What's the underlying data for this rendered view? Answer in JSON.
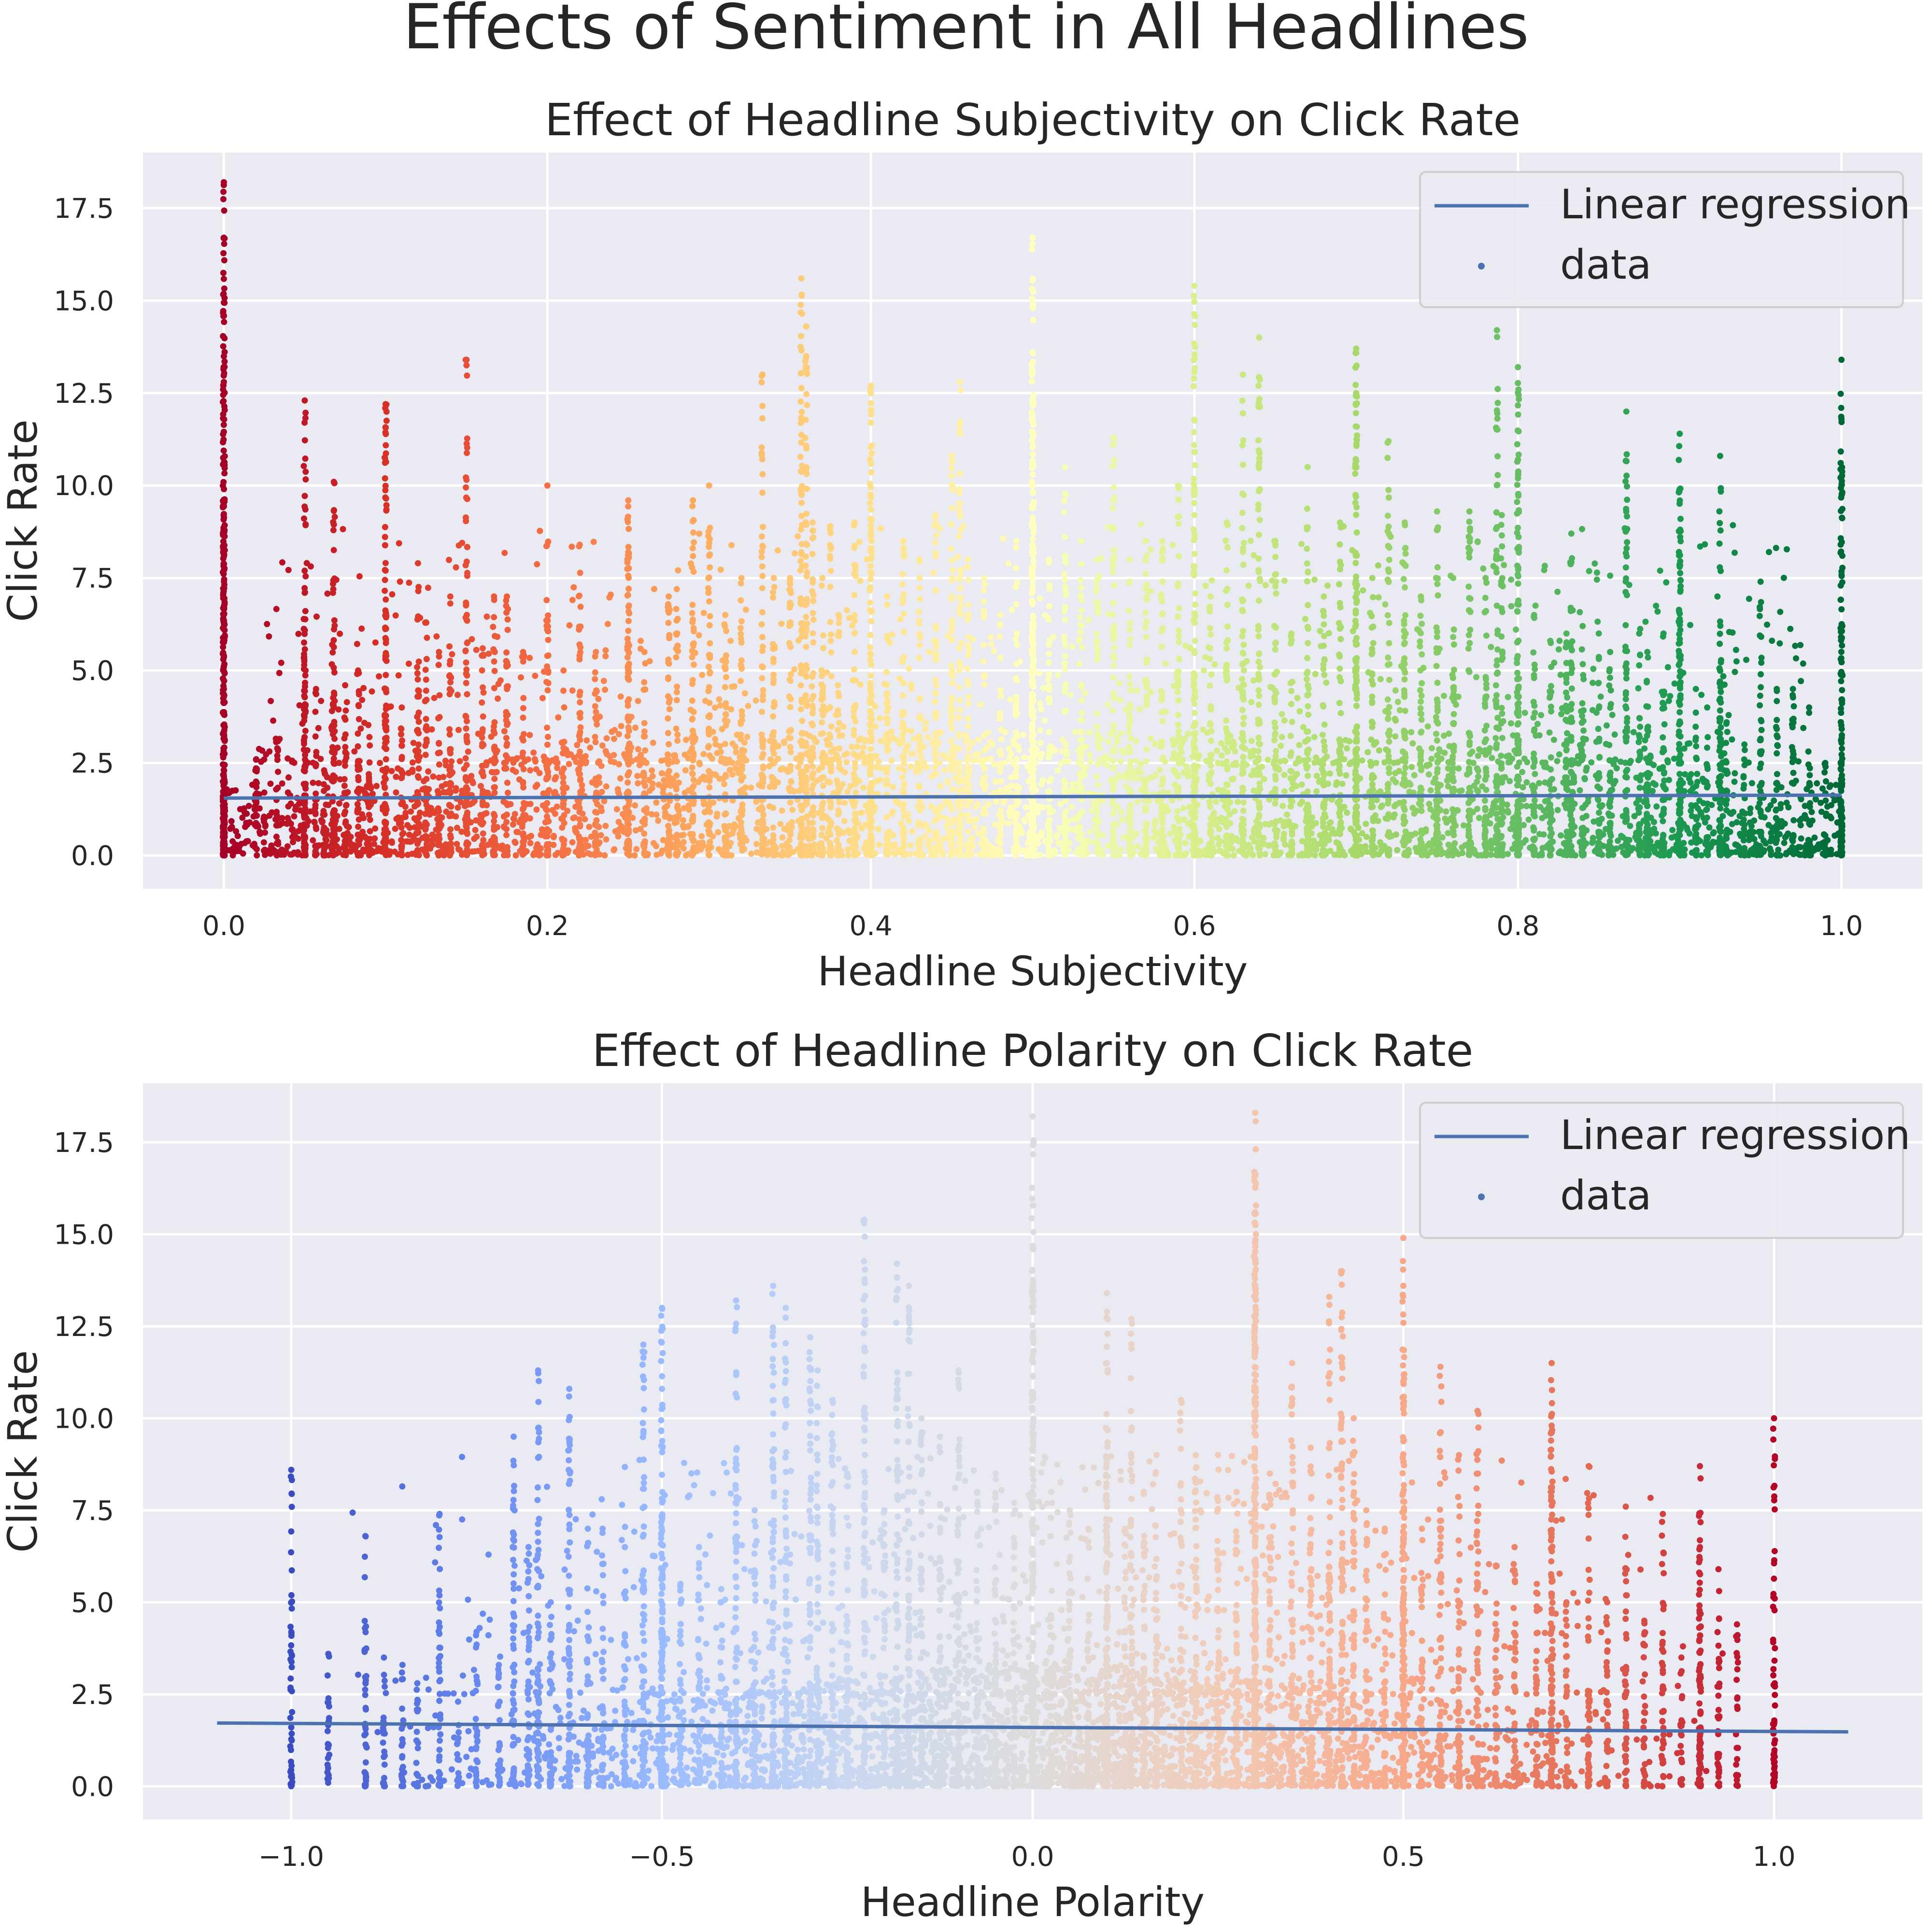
{
  "figure": {
    "suptitle": "Effects of Sentiment in All Headlines"
  },
  "chart_data": [
    {
      "type": "scatter",
      "title": "Effect of Headline Subjectivity on Click Rate",
      "xlabel": "Headline Subjectivity",
      "ylabel": "Click Rate",
      "xlim": [
        -0.05,
        1.05
      ],
      "ylim": [
        -0.9,
        19.0
      ],
      "xticks": [
        0.0,
        0.2,
        0.4,
        0.6,
        0.8,
        1.0
      ],
      "xtick_labels": [
        "0.0",
        "0.2",
        "0.4",
        "0.6",
        "0.8",
        "1.0"
      ],
      "yticks": [
        0.0,
        2.5,
        5.0,
        7.5,
        10.0,
        12.5,
        15.0,
        17.5
      ],
      "ytick_labels": [
        "0.0",
        "2.5",
        "5.0",
        "7.5",
        "10.0",
        "12.5",
        "15.0",
        "17.5"
      ],
      "grid": true,
      "colormap": "RdYlGn",
      "colormap_stops": [
        "#a50026",
        "#d73027",
        "#f46d43",
        "#fdae61",
        "#fee08b",
        "#ffffbf",
        "#d9ef8b",
        "#a6d96a",
        "#66bd63",
        "#1a9850",
        "#006837"
      ],
      "legend": {
        "placement": "upper right",
        "entries": [
          {
            "label": "Linear regression",
            "kind": "line",
            "color": "#4c72b0"
          },
          {
            "label": "data",
            "kind": "marker",
            "color": "#4c72b0"
          }
        ]
      },
      "regression": {
        "x": [
          0.0,
          1.0
        ],
        "y": [
          1.55,
          1.63
        ],
        "color": "#4c72b0"
      },
      "columns": [
        [
          0.0,
          18.2
        ],
        [
          0.0,
          16.7
        ],
        [
          0.0,
          12.8
        ],
        [
          0.0,
          10.6
        ],
        [
          0.02,
          2.6
        ],
        [
          0.025,
          1.7
        ],
        [
          0.033,
          3.1
        ],
        [
          0.05,
          7.1
        ],
        [
          0.05,
          12.3
        ],
        [
          0.057,
          4.5
        ],
        [
          0.062,
          2.3
        ],
        [
          0.067,
          5.7
        ],
        [
          0.068,
          10.1
        ],
        [
          0.075,
          4.6
        ],
        [
          0.083,
          5.0
        ],
        [
          0.09,
          3.2
        ],
        [
          0.1,
          7.7
        ],
        [
          0.1,
          12.2
        ],
        [
          0.11,
          4.0
        ],
        [
          0.12,
          7.9
        ],
        [
          0.125,
          6.3
        ],
        [
          0.133,
          5.5
        ],
        [
          0.14,
          7.0
        ],
        [
          0.15,
          13.4
        ],
        [
          0.16,
          5.6
        ],
        [
          0.167,
          7.0
        ],
        [
          0.175,
          7.0
        ],
        [
          0.185,
          5.5
        ],
        [
          0.2,
          10.0
        ],
        [
          0.21,
          5.0
        ],
        [
          0.22,
          8.4
        ],
        [
          0.23,
          5.5
        ],
        [
          0.25,
          9.6
        ],
        [
          0.25,
          8.2
        ],
        [
          0.26,
          5.5
        ],
        [
          0.275,
          7.0
        ],
        [
          0.28,
          7.2
        ],
        [
          0.29,
          9.6
        ],
        [
          0.3,
          10.0
        ],
        [
          0.31,
          6.5
        ],
        [
          0.32,
          7.5
        ],
        [
          0.333,
          13.0
        ],
        [
          0.34,
          7.5
        ],
        [
          0.35,
          7.5
        ],
        [
          0.357,
          15.6
        ],
        [
          0.36,
          14.3
        ],
        [
          0.364,
          9.0
        ],
        [
          0.37,
          7.5
        ],
        [
          0.375,
          8.9
        ],
        [
          0.38,
          6.5
        ],
        [
          0.39,
          9.0
        ],
        [
          0.4,
          12.7
        ],
        [
          0.4,
          11.7
        ],
        [
          0.41,
          7.0
        ],
        [
          0.42,
          8.5
        ],
        [
          0.43,
          8.0
        ],
        [
          0.44,
          9.2
        ],
        [
          0.45,
          10.8
        ],
        [
          0.455,
          12.8
        ],
        [
          0.46,
          8.0
        ],
        [
          0.47,
          7.5
        ],
        [
          0.48,
          6.5
        ],
        [
          0.49,
          8.5
        ],
        [
          0.5,
          16.7
        ],
        [
          0.5,
          14.9
        ],
        [
          0.5,
          13.6
        ],
        [
          0.51,
          8.0
        ],
        [
          0.52,
          10.5
        ],
        [
          0.53,
          8.5
        ],
        [
          0.54,
          8.0
        ],
        [
          0.55,
          11.3
        ],
        [
          0.56,
          8.0
        ],
        [
          0.57,
          8.5
        ],
        [
          0.58,
          8.5
        ],
        [
          0.59,
          10.0
        ],
        [
          0.6,
          15.4
        ],
        [
          0.6,
          9.2
        ],
        [
          0.61,
          7.0
        ],
        [
          0.62,
          9.0
        ],
        [
          0.63,
          13.0
        ],
        [
          0.64,
          14.0
        ],
        [
          0.65,
          8.5
        ],
        [
          0.66,
          6.0
        ],
        [
          0.67,
          10.5
        ],
        [
          0.68,
          7.0
        ],
        [
          0.69,
          9.0
        ],
        [
          0.7,
          13.7
        ],
        [
          0.7,
          12.5
        ],
        [
          0.71,
          7.5
        ],
        [
          0.72,
          11.2
        ],
        [
          0.73,
          9.0
        ],
        [
          0.74,
          7.0
        ],
        [
          0.75,
          9.3
        ],
        [
          0.76,
          7.5
        ],
        [
          0.77,
          9.3
        ],
        [
          0.78,
          7.5
        ],
        [
          0.787,
          14.2
        ],
        [
          0.79,
          9.2
        ],
        [
          0.8,
          13.2
        ],
        [
          0.8,
          10.7
        ],
        [
          0.81,
          6.5
        ],
        [
          0.82,
          5.8
        ],
        [
          0.83,
          6.0
        ],
        [
          0.833,
          8.7
        ],
        [
          0.84,
          6.2
        ],
        [
          0.85,
          6.0
        ],
        [
          0.857,
          5.5
        ],
        [
          0.867,
          12.0
        ],
        [
          0.875,
          6.0
        ],
        [
          0.88,
          5.5
        ],
        [
          0.89,
          6.0
        ],
        [
          0.9,
          11.4
        ],
        [
          0.9,
          9.9
        ],
        [
          0.91,
          4.5
        ],
        [
          0.917,
          4.0
        ],
        [
          0.925,
          10.8
        ],
        [
          0.929,
          3.6
        ],
        [
          0.94,
          3.0
        ],
        [
          0.95,
          7.4
        ],
        [
          0.96,
          4.5
        ],
        [
          0.97,
          4.5
        ],
        [
          0.98,
          4.0
        ],
        [
          0.99,
          2.5
        ],
        [
          1.0,
          13.4
        ],
        [
          1.0,
          11.8
        ]
      ]
    },
    {
      "type": "scatter",
      "title": "Effect of Headline Polarity on Click Rate",
      "xlabel": "Headline Polarity",
      "ylabel": "Click Rate",
      "xlim": [
        -1.2,
        1.2
      ],
      "ylim": [
        -0.9,
        19.1
      ],
      "xticks": [
        -1.0,
        -0.5,
        0.0,
        0.5,
        1.0
      ],
      "xtick_labels": [
        "−1.0",
        "−0.5",
        "0.0",
        "0.5",
        "1.0"
      ],
      "yticks": [
        0.0,
        2.5,
        5.0,
        7.5,
        10.0,
        12.5,
        15.0,
        17.5
      ],
      "ytick_labels": [
        "0.0",
        "2.5",
        "5.0",
        "7.5",
        "10.0",
        "12.5",
        "15.0",
        "17.5"
      ],
      "grid": true,
      "colormap": "coolwarm",
      "colormap_stops": [
        "#3b4cc0",
        "#6788ee",
        "#9abbff",
        "#c9d7f0",
        "#dddcdc",
        "#f2cbb7",
        "#f7a889",
        "#e26952",
        "#b40426"
      ],
      "legend": {
        "placement": "upper right",
        "entries": [
          {
            "label": "Linear regression",
            "kind": "line",
            "color": "#4c72b0"
          },
          {
            "label": "data",
            "kind": "marker",
            "color": "#4c72b0"
          }
        ]
      },
      "regression": {
        "x": [
          -1.1,
          1.1
        ],
        "y": [
          1.72,
          1.48
        ],
        "color": "#4c72b0"
      },
      "columns": [
        [
          -1.0,
          8.6
        ],
        [
          -0.95,
          3.6
        ],
        [
          -0.9,
          6.8
        ],
        [
          -0.875,
          3.5
        ],
        [
          -0.85,
          3.3
        ],
        [
          -0.83,
          2.8
        ],
        [
          -0.8,
          7.4
        ],
        [
          -0.775,
          2.3
        ],
        [
          -0.75,
          4.2
        ],
        [
          -0.72,
          3.3
        ],
        [
          -0.7,
          9.5
        ],
        [
          -0.68,
          6.5
        ],
        [
          -0.667,
          11.3
        ],
        [
          -0.65,
          5.0
        ],
        [
          -0.625,
          10.8
        ],
        [
          -0.6,
          7.0
        ],
        [
          -0.58,
          7.0
        ],
        [
          -0.55,
          6.5
        ],
        [
          -0.525,
          12.0
        ],
        [
          -0.5,
          13.0
        ],
        [
          -0.5,
          10.8
        ],
        [
          -0.475,
          5.5
        ],
        [
          -0.45,
          6.5
        ],
        [
          -0.42,
          5.0
        ],
        [
          -0.4,
          13.2
        ],
        [
          -0.375,
          7.5
        ],
        [
          -0.35,
          13.6
        ],
        [
          -0.333,
          13.0
        ],
        [
          -0.3,
          12.2
        ],
        [
          -0.29,
          11.3
        ],
        [
          -0.27,
          10.5
        ],
        [
          -0.25,
          8.5
        ],
        [
          -0.227,
          15.4
        ],
        [
          -0.2,
          7.5
        ],
        [
          -0.183,
          14.2
        ],
        [
          -0.167,
          13.6
        ],
        [
          -0.15,
          10.0
        ],
        [
          -0.125,
          9.5
        ],
        [
          -0.1,
          11.3
        ],
        [
          -0.075,
          8.0
        ],
        [
          -0.05,
          8.5
        ],
        [
          -0.025,
          7.7
        ],
        [
          0.0,
          18.2
        ],
        [
          0.0,
          13.6
        ],
        [
          0.025,
          8.0
        ],
        [
          0.05,
          7.5
        ],
        [
          0.075,
          7.0
        ],
        [
          0.1,
          13.4
        ],
        [
          0.1,
          11.5
        ],
        [
          0.125,
          7.0
        ],
        [
          0.133,
          12.7
        ],
        [
          0.15,
          8.0
        ],
        [
          0.167,
          9.0
        ],
        [
          0.2,
          10.5
        ],
        [
          0.22,
          9.0
        ],
        [
          0.25,
          9.0
        ],
        [
          0.275,
          8.0
        ],
        [
          0.3,
          18.3
        ],
        [
          0.3,
          15.6
        ],
        [
          0.3,
          14.3
        ],
        [
          0.32,
          8.5
        ],
        [
          0.35,
          11.5
        ],
        [
          0.375,
          9.2
        ],
        [
          0.4,
          13.3
        ],
        [
          0.417,
          14.0
        ],
        [
          0.433,
          10.0
        ],
        [
          0.45,
          7.5
        ],
        [
          0.475,
          7.0
        ],
        [
          0.5,
          14.9
        ],
        [
          0.5,
          13.6
        ],
        [
          0.525,
          7.0
        ],
        [
          0.55,
          11.4
        ],
        [
          0.575,
          9.0
        ],
        [
          0.6,
          10.2
        ],
        [
          0.625,
          6.0
        ],
        [
          0.65,
          6.5
        ],
        [
          0.68,
          5.5
        ],
        [
          0.7,
          11.5
        ],
        [
          0.7,
          9.8
        ],
        [
          0.72,
          5.0
        ],
        [
          0.75,
          8.7
        ],
        [
          0.775,
          5.0
        ],
        [
          0.8,
          7.6
        ],
        [
          0.825,
          4.5
        ],
        [
          0.85,
          7.4
        ],
        [
          0.875,
          3.5
        ],
        [
          0.9,
          8.7
        ],
        [
          0.9,
          6.5
        ],
        [
          0.925,
          5.9
        ],
        [
          0.95,
          4.4
        ],
        [
          1.0,
          10.0
        ]
      ]
    }
  ]
}
